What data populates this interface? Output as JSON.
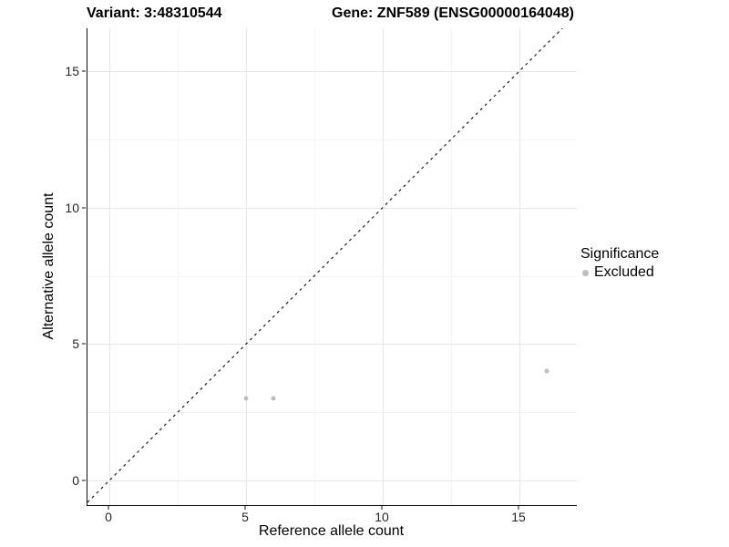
{
  "chart_data": {
    "type": "scatter",
    "title_left": "Variant: 3:48310544",
    "title_right": "Gene: ZNF589 (ENSG00000164048)",
    "xlabel": "Reference allele count",
    "ylabel": "Alternative allele count",
    "xlim": [
      -0.8,
      17.1
    ],
    "ylim": [
      -0.9,
      16.57
    ],
    "x_ticks": [
      0,
      5,
      10,
      15
    ],
    "y_ticks": [
      0,
      5,
      10,
      15
    ],
    "x_minor_ticks": [
      2.5,
      7.5,
      12.5
    ],
    "y_minor_ticks": [
      2.5,
      7.5,
      12.5
    ],
    "grid": true,
    "series": [
      {
        "name": "Excluded",
        "color": "#bebebe",
        "points": [
          [
            5,
            3
          ],
          [
            6,
            3
          ],
          [
            16,
            4
          ]
        ]
      }
    ],
    "identity_line": {
      "slope": 1,
      "intercept": 0,
      "style": "dashed",
      "color": "#1a1a1a"
    },
    "legend": {
      "title": "Significance",
      "position": "right",
      "items": [
        {
          "label": "Excluded",
          "color": "#bebebe"
        }
      ]
    },
    "colors": {
      "grid_major": "#e7e7e7",
      "grid_minor": "#f4f4f4",
      "axis_line": "#111111",
      "point": "#bebebe"
    }
  }
}
